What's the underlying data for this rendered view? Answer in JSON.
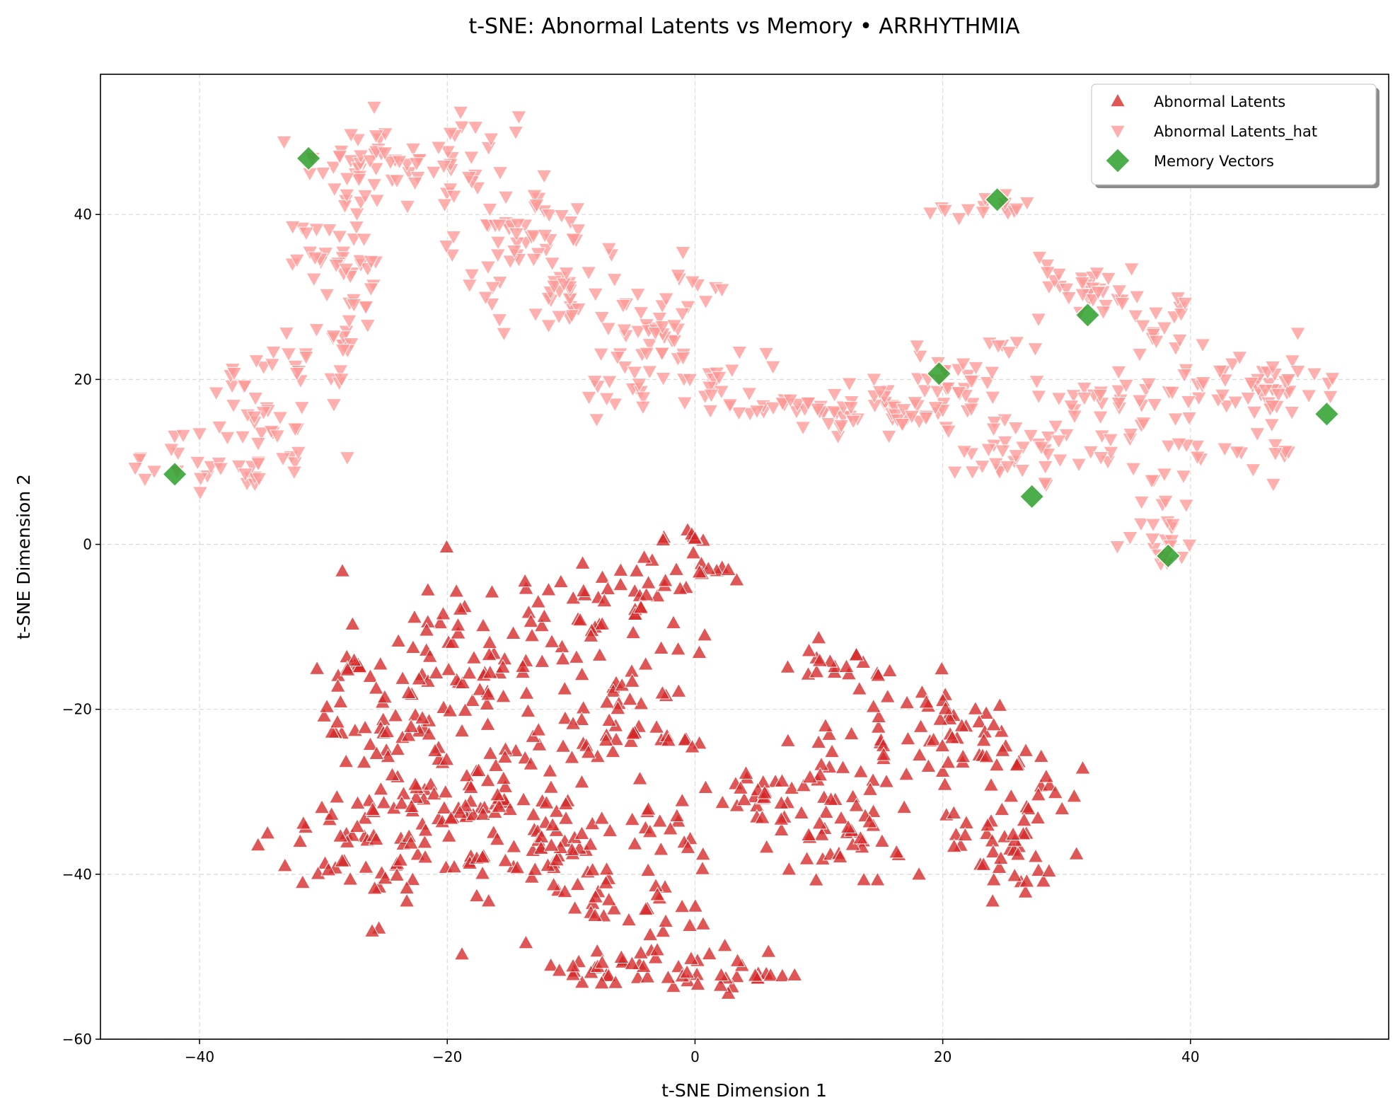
{
  "chart_data": {
    "type": "scatter",
    "title": "t-SNE: Abnormal Latents vs Memory • ARRHYTHMIA",
    "xlabel": "t-SNE Dimension 1",
    "ylabel": "t-SNE Dimension 2",
    "xlim": [
      -48,
      56
    ],
    "ylim": [
      -60,
      57
    ],
    "xticks": [
      -40,
      -20,
      0,
      20,
      40
    ],
    "yticks": [
      -60,
      -40,
      -20,
      0,
      20,
      40
    ],
    "grid": true,
    "legend_position": "top-right",
    "series": [
      {
        "name": "Abnormal Latents",
        "marker": "triangle-up",
        "color": "#d62728",
        "clusters": [
          {
            "cx": -20,
            "cy": -13,
            "sx": 3.5,
            "sy": 5,
            "n": 60
          },
          {
            "cx": -27,
            "cy": -16,
            "sx": 1.5,
            "sy": 2.5,
            "n": 15
          },
          {
            "cx": -25,
            "cy": -23,
            "sx": 4,
            "sy": 2.5,
            "n": 35
          },
          {
            "cx": -28,
            "cy": -36,
            "sx": 3,
            "sy": 4,
            "n": 35
          },
          {
            "cx": -22,
            "cy": -34,
            "sx": 3.5,
            "sy": 5,
            "n": 50
          },
          {
            "cx": -15,
            "cy": -32,
            "sx": 3.5,
            "sy": 5,
            "n": 50
          },
          {
            "cx": -8,
            "cy": -8,
            "sx": 4,
            "sy": 3,
            "n": 35
          },
          {
            "cx": -3,
            "cy": -5,
            "sx": 2.5,
            "sy": 2,
            "n": 20
          },
          {
            "cx": 0,
            "cy": 1,
            "sx": 1,
            "sy": 0.6,
            "n": 8
          },
          {
            "cx": 1,
            "cy": -3,
            "sx": 1.5,
            "sy": 0.8,
            "n": 6
          },
          {
            "cx": -7,
            "cy": -18,
            "sx": 3.5,
            "sy": 4,
            "n": 30
          },
          {
            "cx": -5,
            "cy": -24,
            "sx": 4,
            "sy": 1,
            "n": 20
          },
          {
            "cx": -5,
            "cy": -33,
            "sx": 4.5,
            "sy": 4,
            "n": 40
          },
          {
            "cx": -12,
            "cy": -38,
            "sx": 3,
            "sy": 3,
            "n": 25
          },
          {
            "cx": -7,
            "cy": -44,
            "sx": 4,
            "sy": 2.5,
            "n": 20
          },
          {
            "cx": -8,
            "cy": -51,
            "sx": 4,
            "sy": 1.2,
            "n": 25
          },
          {
            "cx": 2,
            "cy": -52,
            "sx": 3,
            "sy": 1.5,
            "n": 25
          },
          {
            "cx": -2,
            "cy": -46,
            "sx": 1.5,
            "sy": 3,
            "n": 12
          },
          {
            "cx": 12,
            "cy": -15,
            "sx": 3,
            "sy": 1.2,
            "n": 20
          },
          {
            "cx": 21,
            "cy": -23,
            "sx": 3.5,
            "sy": 3,
            "n": 40
          },
          {
            "cx": 14,
            "cy": -25,
            "sx": 3.5,
            "sy": 3,
            "n": 30
          },
          {
            "cx": 8,
            "cy": -31,
            "sx": 3,
            "sy": 2,
            "n": 25
          },
          {
            "cx": 12,
            "cy": -37,
            "sx": 3.5,
            "sy": 2,
            "n": 30
          },
          {
            "cx": 4,
            "cy": -30,
            "sx": 2,
            "sy": 1,
            "n": 10
          },
          {
            "cx": 25,
            "cy": -34,
            "sx": 2.5,
            "sy": 3,
            "n": 25
          },
          {
            "cx": 26,
            "cy": -40,
            "sx": 1.5,
            "sy": 1.8,
            "n": 15
          },
          {
            "cx": 28,
            "cy": -29,
            "sx": 1.5,
            "sy": 2.5,
            "n": 15
          },
          {
            "cx": 7,
            "cy": -52,
            "sx": 1.2,
            "sy": 0.5,
            "n": 4
          }
        ]
      },
      {
        "name": "Abnormal Latents_hat",
        "marker": "triangle-down",
        "color": "#ff9896",
        "clusters": [
          {
            "cx": -38,
            "cy": 10,
            "sx": 3.5,
            "sy": 2,
            "n": 35
          },
          {
            "cx": -35,
            "cy": 17,
            "sx": 2.5,
            "sy": 3,
            "n": 30
          },
          {
            "cx": -32,
            "cy": 24,
            "sx": 1.5,
            "sy": 2.5,
            "n": 10
          },
          {
            "cx": -28,
            "cy": 34,
            "sx": 1.2,
            "sy": 3,
            "n": 30
          },
          {
            "cx": -28,
            "cy": 24,
            "sx": 1.2,
            "sy": 2.5,
            "n": 15
          },
          {
            "cx": -31,
            "cy": 36,
            "sx": 1,
            "sy": 2,
            "n": 10
          },
          {
            "cx": -27,
            "cy": 46,
            "sx": 3,
            "sy": 2.5,
            "n": 40
          },
          {
            "cx": -20,
            "cy": 45,
            "sx": 3,
            "sy": 2,
            "n": 30
          },
          {
            "cx": -17,
            "cy": 50,
            "sx": 1.5,
            "sy": 1,
            "n": 8
          },
          {
            "cx": -14,
            "cy": 38,
            "sx": 3,
            "sy": 2.5,
            "n": 40
          },
          {
            "cx": -16,
            "cy": 31,
            "sx": 1.5,
            "sy": 2,
            "n": 15
          },
          {
            "cx": -9,
            "cy": 30,
            "sx": 3,
            "sy": 2.5,
            "n": 35
          },
          {
            "cx": -4,
            "cy": 24,
            "sx": 2.5,
            "sy": 2,
            "n": 25
          },
          {
            "cx": -5,
            "cy": 18,
            "sx": 2,
            "sy": 1.5,
            "n": 15
          },
          {
            "cx": 0,
            "cy": 31,
            "sx": 1.2,
            "sy": 2,
            "n": 12
          },
          {
            "cx": 3,
            "cy": 20,
            "sx": 2.5,
            "sy": 1.5,
            "n": 20
          },
          {
            "cx": 9,
            "cy": 16.5,
            "sx": 3.5,
            "sy": 1,
            "n": 30
          },
          {
            "cx": 14,
            "cy": 16,
            "sx": 3,
            "sy": 2,
            "n": 25
          },
          {
            "cx": 18,
            "cy": 17,
            "sx": 2.5,
            "sy": 1.5,
            "n": 15
          },
          {
            "cx": 22,
            "cy": 19,
            "sx": 2,
            "sy": 1.5,
            "n": 15
          },
          {
            "cx": 23,
            "cy": 41,
            "sx": 2,
            "sy": 0.6,
            "n": 15
          },
          {
            "cx": 24,
            "cy": 12,
            "sx": 1.5,
            "sy": 2,
            "n": 15
          },
          {
            "cx": 28,
            "cy": 12,
            "sx": 2,
            "sy": 3,
            "n": 20
          },
          {
            "cx": 33,
            "cy": 18,
            "sx": 2.5,
            "sy": 1.5,
            "n": 20
          },
          {
            "cx": 33,
            "cy": 12,
            "sx": 2,
            "sy": 1.5,
            "n": 15
          },
          {
            "cx": 32,
            "cy": 31,
            "sx": 2.5,
            "sy": 1.8,
            "n": 35
          },
          {
            "cx": 38,
            "cy": 26,
            "sx": 1.5,
            "sy": 2.5,
            "n": 15
          },
          {
            "cx": 42,
            "cy": 18,
            "sx": 3,
            "sy": 2,
            "n": 30
          },
          {
            "cx": 47,
            "cy": 19,
            "sx": 2.5,
            "sy": 2,
            "n": 30
          },
          {
            "cx": 45,
            "cy": 11,
            "sx": 3,
            "sy": 1.2,
            "n": 15
          },
          {
            "cx": 37,
            "cy": 4,
            "sx": 1.5,
            "sy": 3,
            "n": 15
          },
          {
            "cx": 38,
            "cy": 0,
            "sx": 1.5,
            "sy": 1.5,
            "n": 12
          },
          {
            "cx": 20,
            "cy": 22,
            "sx": 2,
            "sy": 1.5,
            "n": 10
          },
          {
            "cx": 25,
            "cy": 24,
            "sx": 1,
            "sy": 0.6,
            "n": 6
          }
        ]
      },
      {
        "name": "Memory Vectors",
        "marker": "diamond",
        "color": "#2ca02c",
        "points": [
          {
            "x": -31.2,
            "y": 46.8
          },
          {
            "x": -42.0,
            "y": 8.5
          },
          {
            "x": 24.4,
            "y": 41.8
          },
          {
            "x": 31.7,
            "y": 27.8
          },
          {
            "x": 19.7,
            "y": 20.7
          },
          {
            "x": 27.2,
            "y": 5.8
          },
          {
            "x": 38.2,
            "y": -1.4
          },
          {
            "x": 51.0,
            "y": 15.8
          }
        ]
      }
    ]
  }
}
